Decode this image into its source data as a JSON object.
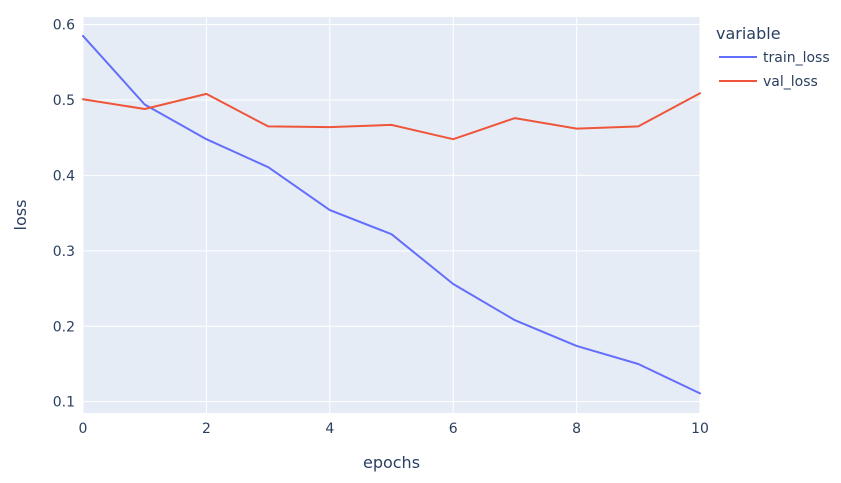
{
  "chart_data": {
    "type": "line",
    "xlabel": "epochs",
    "ylabel": "loss",
    "xlim": [
      0,
      10
    ],
    "ylim": [
      0.085,
      0.61
    ],
    "xticks": [
      0,
      2,
      4,
      6,
      8,
      10
    ],
    "yticks": [
      0.1,
      0.2,
      0.3,
      0.4,
      0.5,
      0.6
    ],
    "grid": true,
    "legend_title": "variable",
    "legend_position": "top-right, outside plot",
    "background_color": "#e5ecf6",
    "x": [
      0,
      1,
      2,
      3,
      4,
      5,
      6,
      7,
      8,
      9,
      10
    ],
    "series": [
      {
        "name": "train_loss",
        "color": "#636efa",
        "values": [
          0.585,
          0.494,
          0.448,
          0.411,
          0.354,
          0.322,
          0.256,
          0.208,
          0.174,
          0.15,
          0.111
        ]
      },
      {
        "name": "val_loss",
        "color": "#ef553b",
        "values": [
          0.501,
          0.488,
          0.508,
          0.465,
          0.464,
          0.467,
          0.448,
          0.476,
          0.462,
          0.465,
          0.509
        ]
      }
    ]
  }
}
